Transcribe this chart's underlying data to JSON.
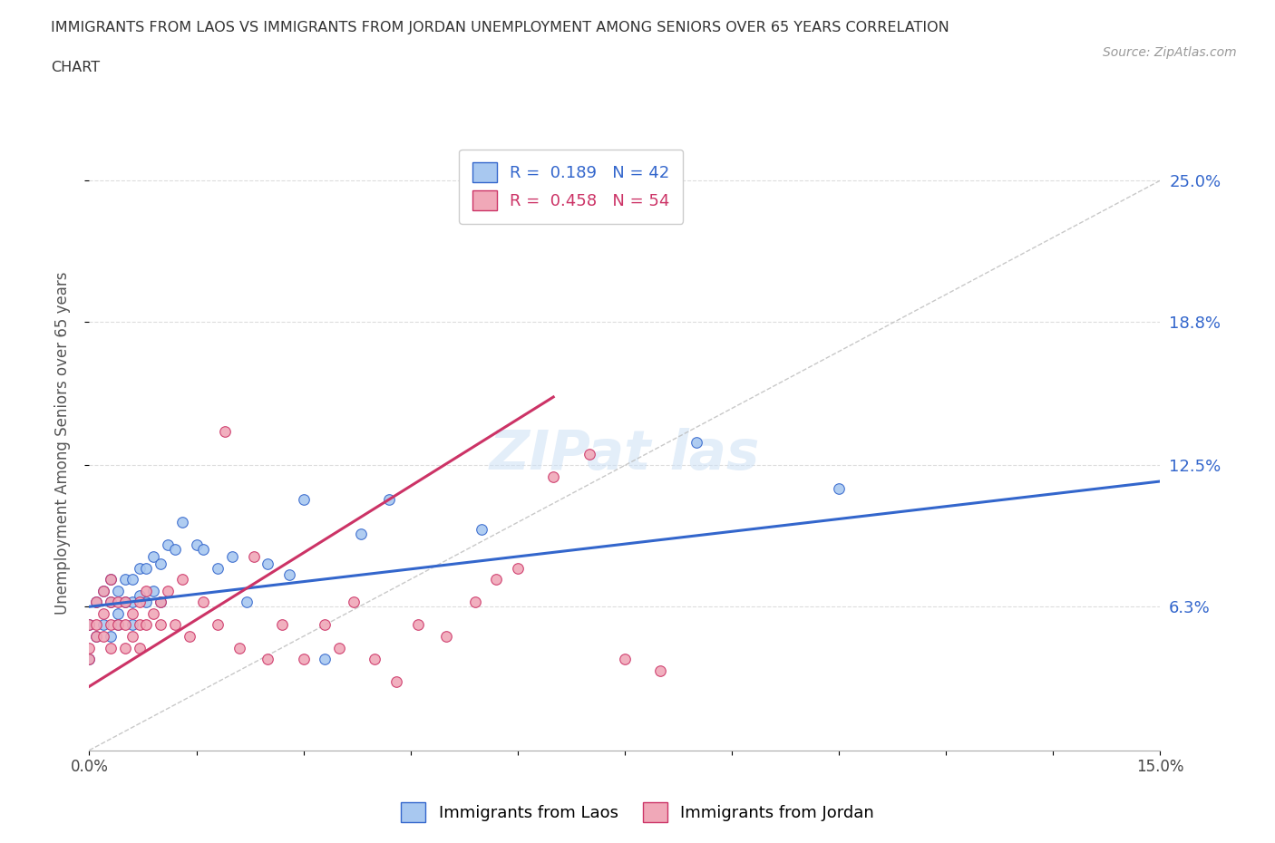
{
  "title_line1": "IMMIGRANTS FROM LAOS VS IMMIGRANTS FROM JORDAN UNEMPLOYMENT AMONG SENIORS OVER 65 YEARS CORRELATION",
  "title_line2": "CHART",
  "source": "Source: ZipAtlas.com",
  "ylabel": "Unemployment Among Seniors over 65 years",
  "xlim": [
    0.0,
    0.15
  ],
  "ylim": [
    0.0,
    0.27
  ],
  "legend_r1": "R =  0.189   N = 42",
  "legend_r2": "R =  0.458   N = 54",
  "color_laos": "#a8c8f0",
  "color_jordan": "#f0a8b8",
  "line_color_laos": "#3366cc",
  "line_color_jordan": "#cc3366",
  "trend_line_color": "#bbbbbb",
  "background_color": "#ffffff",
  "grid_color": "#dddddd",
  "laos_x": [
    0.0,
    0.0,
    0.001,
    0.001,
    0.002,
    0.002,
    0.003,
    0.003,
    0.003,
    0.004,
    0.004,
    0.004,
    0.005,
    0.005,
    0.006,
    0.006,
    0.006,
    0.007,
    0.007,
    0.008,
    0.008,
    0.009,
    0.009,
    0.01,
    0.01,
    0.011,
    0.012,
    0.013,
    0.015,
    0.016,
    0.018,
    0.02,
    0.022,
    0.025,
    0.028,
    0.03,
    0.033,
    0.038,
    0.042,
    0.055,
    0.085,
    0.105
  ],
  "laos_y": [
    0.055,
    0.04,
    0.065,
    0.05,
    0.07,
    0.055,
    0.075,
    0.065,
    0.05,
    0.07,
    0.06,
    0.055,
    0.075,
    0.065,
    0.075,
    0.065,
    0.055,
    0.08,
    0.068,
    0.08,
    0.065,
    0.085,
    0.07,
    0.082,
    0.065,
    0.09,
    0.088,
    0.1,
    0.09,
    0.088,
    0.08,
    0.085,
    0.065,
    0.082,
    0.077,
    0.11,
    0.04,
    0.095,
    0.11,
    0.097,
    0.135,
    0.115
  ],
  "jordan_x": [
    0.0,
    0.0,
    0.0,
    0.001,
    0.001,
    0.001,
    0.002,
    0.002,
    0.002,
    0.003,
    0.003,
    0.003,
    0.003,
    0.004,
    0.004,
    0.005,
    0.005,
    0.005,
    0.006,
    0.006,
    0.007,
    0.007,
    0.007,
    0.008,
    0.008,
    0.009,
    0.01,
    0.01,
    0.011,
    0.012,
    0.013,
    0.014,
    0.016,
    0.018,
    0.019,
    0.021,
    0.023,
    0.025,
    0.027,
    0.03,
    0.033,
    0.035,
    0.037,
    0.04,
    0.043,
    0.046,
    0.05,
    0.054,
    0.057,
    0.06,
    0.065,
    0.07,
    0.075,
    0.08
  ],
  "jordan_y": [
    0.055,
    0.045,
    0.04,
    0.065,
    0.055,
    0.05,
    0.07,
    0.06,
    0.05,
    0.075,
    0.065,
    0.055,
    0.045,
    0.065,
    0.055,
    0.065,
    0.055,
    0.045,
    0.06,
    0.05,
    0.065,
    0.055,
    0.045,
    0.07,
    0.055,
    0.06,
    0.065,
    0.055,
    0.07,
    0.055,
    0.075,
    0.05,
    0.065,
    0.055,
    0.14,
    0.045,
    0.085,
    0.04,
    0.055,
    0.04,
    0.055,
    0.045,
    0.065,
    0.04,
    0.03,
    0.055,
    0.05,
    0.065,
    0.075,
    0.08,
    0.12,
    0.13,
    0.04,
    0.035
  ],
  "laos_trend_x0": 0.0,
  "laos_trend_y0": 0.063,
  "laos_trend_x1": 0.15,
  "laos_trend_y1": 0.118,
  "jordan_trend_x0": 0.0,
  "jordan_trend_y0": 0.028,
  "jordan_trend_x1": 0.065,
  "jordan_trend_y1": 0.155
}
